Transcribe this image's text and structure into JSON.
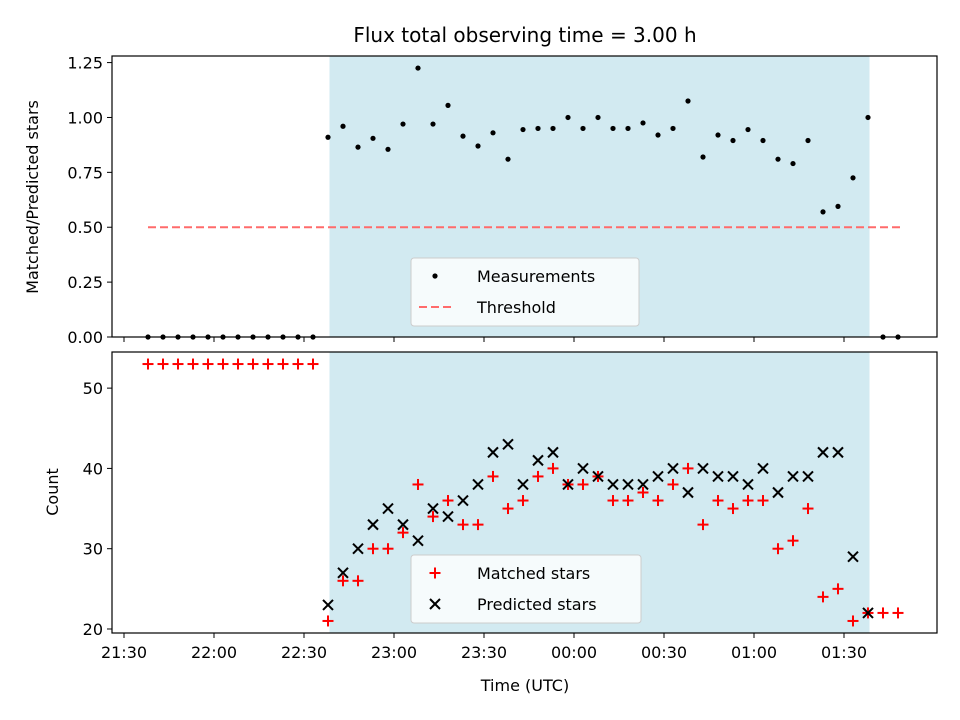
{
  "chart_data": {
    "type": "scatter",
    "title": "Flux total observing time = 3.00 h",
    "x_unit": "Time (UTC)",
    "x_start": "21:30",
    "x_ticks": [
      {
        "label": "21:30",
        "min": 0
      },
      {
        "label": "22:00",
        "min": 30
      },
      {
        "label": "22:30",
        "min": 60
      },
      {
        "label": "23:00",
        "min": 90
      },
      {
        "label": "23:30",
        "min": 120
      },
      {
        "label": "00:00",
        "min": 150
      },
      {
        "label": "00:30",
        "min": 180
      },
      {
        "label": "01:00",
        "min": 210
      },
      {
        "label": "01:30",
        "min": 240
      }
    ],
    "x_range_min": [
      -4,
      271
    ],
    "shaded_region_min": [
      68.5,
      248.5
    ],
    "top": {
      "ylabel": "Matched/Predicted stars",
      "ylim": [
        0,
        1.28
      ],
      "yticks": [
        "0.00",
        "0.25",
        "0.50",
        "0.75",
        "1.00",
        "1.25"
      ],
      "threshold": 0.5,
      "threshold_x_min": [
        8,
        259
      ],
      "legend": [
        "Measurements",
        "Threshold"
      ],
      "measurements": [
        [
          8,
          0
        ],
        [
          13,
          0
        ],
        [
          18,
          0
        ],
        [
          23,
          0
        ],
        [
          28,
          0
        ],
        [
          33,
          0
        ],
        [
          38,
          0
        ],
        [
          43,
          0
        ],
        [
          48,
          0
        ],
        [
          53,
          0
        ],
        [
          58,
          0
        ],
        [
          63,
          0
        ],
        [
          68,
          0.91
        ],
        [
          73,
          0.96
        ],
        [
          78,
          0.865
        ],
        [
          83,
          0.905
        ],
        [
          88,
          0.855
        ],
        [
          93,
          0.97
        ],
        [
          98,
          1.225
        ],
        [
          103,
          0.97
        ],
        [
          108,
          1.055
        ],
        [
          113,
          0.915
        ],
        [
          118,
          0.87
        ],
        [
          123,
          0.93
        ],
        [
          128,
          0.81
        ],
        [
          133,
          0.945
        ],
        [
          138,
          0.95
        ],
        [
          143,
          0.95
        ],
        [
          148,
          1.0
        ],
        [
          153,
          0.95
        ],
        [
          158,
          1.0
        ],
        [
          163,
          0.95
        ],
        [
          168,
          0.95
        ],
        [
          173,
          0.975
        ],
        [
          178,
          0.92
        ],
        [
          183,
          0.95
        ],
        [
          188,
          1.075
        ],
        [
          193,
          0.82
        ],
        [
          198,
          0.92
        ],
        [
          203,
          0.895
        ],
        [
          208,
          0.945
        ],
        [
          213,
          0.895
        ],
        [
          218,
          0.81
        ],
        [
          223,
          0.79
        ],
        [
          228,
          0.895
        ],
        [
          233,
          0.57
        ],
        [
          238,
          0.595
        ],
        [
          243,
          0.725
        ],
        [
          248,
          1.0
        ],
        [
          253,
          0
        ],
        [
          258,
          0
        ]
      ]
    },
    "bottom": {
      "ylabel": "Count",
      "ylim": [
        19.5,
        54.5
      ],
      "yticks": [
        "20",
        "30",
        "40",
        "50"
      ],
      "legend": [
        "Matched stars",
        "Predicted stars"
      ],
      "matched": [
        [
          8,
          53
        ],
        [
          13,
          53
        ],
        [
          18,
          53
        ],
        [
          23,
          53
        ],
        [
          28,
          53
        ],
        [
          33,
          53
        ],
        [
          38,
          53
        ],
        [
          43,
          53
        ],
        [
          48,
          53
        ],
        [
          53,
          53
        ],
        [
          58,
          53
        ],
        [
          63,
          53
        ],
        [
          68,
          21
        ],
        [
          73,
          26
        ],
        [
          78,
          26
        ],
        [
          83,
          30
        ],
        [
          88,
          30
        ],
        [
          93,
          32
        ],
        [
          98,
          38
        ],
        [
          103,
          34
        ],
        [
          108,
          36
        ],
        [
          113,
          33
        ],
        [
          118,
          33
        ],
        [
          123,
          39
        ],
        [
          128,
          35
        ],
        [
          133,
          36
        ],
        [
          138,
          39
        ],
        [
          143,
          40
        ],
        [
          148,
          38
        ],
        [
          153,
          38
        ],
        [
          158,
          39
        ],
        [
          163,
          36
        ],
        [
          168,
          36
        ],
        [
          173,
          37
        ],
        [
          178,
          36
        ],
        [
          183,
          38
        ],
        [
          188,
          40
        ],
        [
          193,
          33
        ],
        [
          198,
          36
        ],
        [
          203,
          35
        ],
        [
          208,
          36
        ],
        [
          213,
          36
        ],
        [
          218,
          30
        ],
        [
          223,
          31
        ],
        [
          228,
          35
        ],
        [
          233,
          24
        ],
        [
          238,
          25
        ],
        [
          243,
          21
        ],
        [
          248,
          22
        ],
        [
          253,
          22
        ],
        [
          258,
          22
        ]
      ],
      "predicted": [
        [
          68,
          23
        ],
        [
          73,
          27
        ],
        [
          78,
          30
        ],
        [
          83,
          33
        ],
        [
          88,
          35
        ],
        [
          93,
          33
        ],
        [
          98,
          31
        ],
        [
          103,
          35
        ],
        [
          108,
          34
        ],
        [
          113,
          36
        ],
        [
          118,
          38
        ],
        [
          123,
          42
        ],
        [
          128,
          43
        ],
        [
          133,
          38
        ],
        [
          138,
          41
        ],
        [
          143,
          42
        ],
        [
          148,
          38
        ],
        [
          153,
          40
        ],
        [
          158,
          39
        ],
        [
          163,
          38
        ],
        [
          168,
          38
        ],
        [
          173,
          38
        ],
        [
          178,
          39
        ],
        [
          183,
          40
        ],
        [
          188,
          37
        ],
        [
          193,
          40
        ],
        [
          198,
          39
        ],
        [
          203,
          39
        ],
        [
          208,
          38
        ],
        [
          213,
          40
        ],
        [
          218,
          37
        ],
        [
          223,
          39
        ],
        [
          228,
          39
        ],
        [
          233,
          42
        ],
        [
          238,
          42
        ],
        [
          243,
          29
        ],
        [
          248,
          22
        ]
      ]
    },
    "colors": {
      "shade": "#add8e6",
      "measurement": "#000000",
      "threshold": "#ff6b6b",
      "matched": "#ff0000",
      "predicted": "#000000"
    }
  }
}
